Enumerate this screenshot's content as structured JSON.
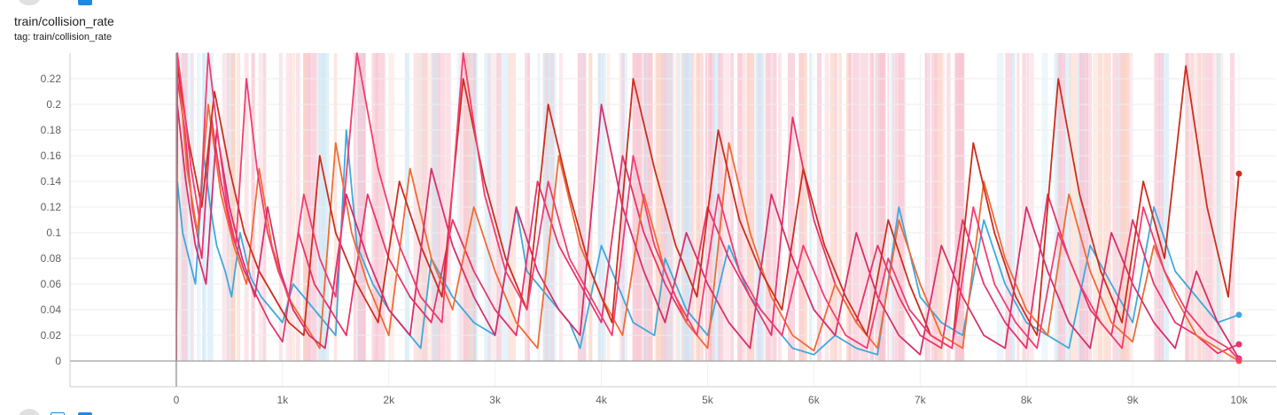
{
  "card": {
    "title": "train/collision_rate",
    "tag": "tag: train/collision_rate"
  },
  "chart_data": {
    "type": "line",
    "title": "train/collision_rate",
    "xlabel": "",
    "ylabel": "",
    "xlim": [
      -1000,
      10350
    ],
    "ylim": [
      -0.02,
      0.24
    ],
    "x_ticks": [
      0,
      1000,
      2000,
      3000,
      4000,
      5000,
      6000,
      7000,
      8000,
      9000,
      10000
    ],
    "x_tick_labels": [
      "0",
      "1k",
      "2k",
      "3k",
      "4k",
      "5k",
      "6k",
      "7k",
      "8k",
      "9k",
      "10k"
    ],
    "y_ticks": [
      0,
      0.02,
      0.04,
      0.06,
      0.08,
      0.1,
      0.12,
      0.14,
      0.16,
      0.18,
      0.2,
      0.22
    ],
    "y_tick_labels": [
      "0",
      "0.02",
      "0.04",
      "0.06",
      "0.08",
      "0.1",
      "0.12",
      "0.14",
      "0.16",
      "0.18",
      "0.2",
      "0.22"
    ],
    "grid": true,
    "legend": "none",
    "colors": [
      "#3fa9dd",
      "#e8346b",
      "#f26b35",
      "#cc2e1e",
      "#d6306c",
      "#f33d72"
    ],
    "series": [
      {
        "color": "#3fa9dd",
        "x": [
          0,
          10,
          60,
          120,
          180,
          260,
          320,
          380,
          460,
          520,
          600,
          700,
          800,
          900,
          1000,
          1100,
          1300,
          1500,
          1600,
          1700,
          1850,
          2000,
          2200,
          2300,
          2400,
          2600,
          2800,
          3000,
          3200,
          3300,
          3500,
          3700,
          3800,
          4000,
          4200,
          4300,
          4500,
          4600,
          4800,
          5000,
          5200,
          5400,
          5600,
          5800,
          6000,
          6200,
          6400,
          6600,
          6800,
          7000,
          7200,
          7400,
          7600,
          7800,
          8000,
          8200,
          8400,
          8600,
          8800,
          9000,
          9200,
          9400,
          9600,
          9800,
          10000
        ],
        "y": [
          0.0,
          0.14,
          0.1,
          0.08,
          0.06,
          0.16,
          0.12,
          0.09,
          0.07,
          0.05,
          0.1,
          0.065,
          0.05,
          0.04,
          0.03,
          0.06,
          0.04,
          0.02,
          0.18,
          0.09,
          0.06,
          0.04,
          0.02,
          0.01,
          0.08,
          0.05,
          0.03,
          0.02,
          0.12,
          0.07,
          0.05,
          0.03,
          0.01,
          0.09,
          0.05,
          0.03,
          0.02,
          0.08,
          0.04,
          0.02,
          0.09,
          0.05,
          0.03,
          0.01,
          0.005,
          0.02,
          0.01,
          0.005,
          0.12,
          0.05,
          0.03,
          0.02,
          0.11,
          0.06,
          0.03,
          0.02,
          0.01,
          0.09,
          0.06,
          0.03,
          0.12,
          0.07,
          0.05,
          0.03,
          0.036
        ]
      },
      {
        "color": "#e8346b",
        "x": [
          0,
          10,
          80,
          150,
          240,
          330,
          420,
          520,
          640,
          760,
          880,
          1000,
          1150,
          1300,
          1450,
          1600,
          1800,
          2000,
          2200,
          2400,
          2600,
          2800,
          3000,
          3200,
          3400,
          3600,
          3800,
          4000,
          4200,
          4400,
          4600,
          4800,
          5000,
          5200,
          5400,
          5600,
          5800,
          6000,
          6200,
          6400,
          6600,
          6800,
          7000,
          7200,
          7400,
          7600,
          7800,
          8000,
          8200,
          8400,
          8600,
          8800,
          9000,
          9200,
          9400,
          9600,
          9800,
          10000
        ],
        "y": [
          0.0,
          0.22,
          0.18,
          0.12,
          0.08,
          0.19,
          0.14,
          0.1,
          0.07,
          0.05,
          0.03,
          0.015,
          0.1,
          0.06,
          0.04,
          0.02,
          0.13,
          0.08,
          0.05,
          0.03,
          0.11,
          0.07,
          0.04,
          0.02,
          0.14,
          0.09,
          0.06,
          0.03,
          0.16,
          0.1,
          0.06,
          0.03,
          0.12,
          0.08,
          0.05,
          0.02,
          0.19,
          0.11,
          0.06,
          0.03,
          0.09,
          0.05,
          0.02,
          0.01,
          0.11,
          0.06,
          0.03,
          0.01,
          0.13,
          0.08,
          0.04,
          0.02,
          0.11,
          0.06,
          0.03,
          0.02,
          0.006,
          0.013
        ]
      },
      {
        "color": "#f26b35",
        "x": [
          0,
          10,
          100,
          200,
          300,
          420,
          540,
          660,
          780,
          900,
          1050,
          1200,
          1350,
          1500,
          1650,
          1800,
          2000,
          2200,
          2400,
          2600,
          2800,
          3000,
          3200,
          3400,
          3600,
          3800,
          4000,
          4200,
          4400,
          4600,
          4800,
          5000,
          5200,
          5400,
          5600,
          5800,
          6000,
          6200,
          6400,
          6600,
          6800,
          7000,
          7200,
          7400,
          7600,
          7800,
          8000,
          8200,
          8400,
          8600,
          8800,
          9000,
          9200,
          9400,
          9600,
          9800,
          10000
        ],
        "y": [
          0.0,
          0.24,
          0.15,
          0.1,
          0.2,
          0.13,
          0.09,
          0.06,
          0.15,
          0.09,
          0.05,
          0.03,
          0.01,
          0.17,
          0.1,
          0.06,
          0.02,
          0.15,
          0.08,
          0.04,
          0.12,
          0.07,
          0.03,
          0.01,
          0.16,
          0.09,
          0.05,
          0.02,
          0.13,
          0.07,
          0.03,
          0.01,
          0.17,
          0.1,
          0.05,
          0.02,
          0.008,
          0.06,
          0.03,
          0.01,
          0.11,
          0.06,
          0.02,
          0.01,
          0.14,
          0.08,
          0.04,
          0.02,
          0.13,
          0.07,
          0.03,
          0.015,
          0.09,
          0.05,
          0.02,
          0.01,
          0.0
        ]
      },
      {
        "color": "#cc2e1e",
        "x": [
          0,
          10,
          120,
          240,
          360,
          500,
          640,
          780,
          920,
          1060,
          1200,
          1350,
          1500,
          1700,
          1900,
          2100,
          2300,
          2500,
          2700,
          2900,
          3100,
          3300,
          3500,
          3700,
          3900,
          4100,
          4300,
          4500,
          4700,
          4900,
          5100,
          5300,
          5500,
          5700,
          5900,
          6100,
          6300,
          6500,
          6700,
          6900,
          7100,
          7300,
          7500,
          7700,
          7900,
          8100,
          8300,
          8500,
          8700,
          8900,
          9100,
          9300,
          9500,
          9700,
          9900,
          10000
        ],
        "y": [
          0.0,
          0.23,
          0.17,
          0.12,
          0.21,
          0.15,
          0.1,
          0.07,
          0.05,
          0.03,
          0.02,
          0.16,
          0.1,
          0.06,
          0.03,
          0.14,
          0.09,
          0.05,
          0.22,
          0.14,
          0.08,
          0.04,
          0.2,
          0.13,
          0.07,
          0.03,
          0.22,
          0.15,
          0.09,
          0.05,
          0.18,
          0.11,
          0.07,
          0.04,
          0.15,
          0.09,
          0.05,
          0.02,
          0.11,
          0.06,
          0.02,
          0.01,
          0.17,
          0.1,
          0.05,
          0.02,
          0.22,
          0.13,
          0.07,
          0.03,
          0.14,
          0.08,
          0.23,
          0.12,
          0.05,
          0.146
        ]
      },
      {
        "color": "#d6306c",
        "x": [
          0,
          10,
          90,
          180,
          280,
          380,
          500,
          620,
          740,
          860,
          980,
          1100,
          1250,
          1400,
          1600,
          1800,
          2000,
          2200,
          2400,
          2600,
          2800,
          3000,
          3200,
          3400,
          3600,
          3800,
          4000,
          4200,
          4400,
          4600,
          4800,
          5000,
          5200,
          5400,
          5600,
          5800,
          6000,
          6200,
          6400,
          6600,
          6800,
          7000,
          7200,
          7400,
          7600,
          7800,
          8000,
          8200,
          8400,
          8600,
          8800,
          9000,
          9200,
          9400,
          9600,
          9800,
          10000
        ],
        "y": [
          0.0,
          0.2,
          0.14,
          0.09,
          0.06,
          0.18,
          0.12,
          0.08,
          0.05,
          0.12,
          0.07,
          0.04,
          0.02,
          0.01,
          0.13,
          0.08,
          0.04,
          0.02,
          0.15,
          0.09,
          0.05,
          0.02,
          0.12,
          0.07,
          0.04,
          0.02,
          0.2,
          0.12,
          0.07,
          0.03,
          0.1,
          0.06,
          0.03,
          0.01,
          0.13,
          0.08,
          0.04,
          0.02,
          0.1,
          0.05,
          0.02,
          0.005,
          0.09,
          0.05,
          0.02,
          0.01,
          0.12,
          0.07,
          0.03,
          0.01,
          0.1,
          0.06,
          0.03,
          0.01,
          0.07,
          0.03,
          0.002
        ]
      },
      {
        "color": "#f33d72",
        "x": [
          0,
          10,
          70,
          140,
          220,
          300,
          400,
          480,
          560,
          660,
          760,
          860,
          960,
          1060,
          1200,
          1350,
          1500,
          1700,
          1900,
          2100,
          2300,
          2500,
          2700,
          2900,
          3100,
          3300,
          3500,
          3700,
          3900,
          4100,
          4300,
          4500,
          4700,
          4900,
          5100,
          5300,
          5500,
          5700,
          5900,
          6100,
          6300,
          6500,
          6700,
          6900,
          7100,
          7300,
          7500,
          7700,
          7900,
          8100,
          8300,
          8500,
          8700,
          8900,
          9100,
          9300,
          9500,
          9700,
          9900,
          10000
        ],
        "y": [
          0.0,
          0.24,
          0.2,
          0.15,
          0.11,
          0.24,
          0.17,
          0.12,
          0.09,
          0.22,
          0.15,
          0.1,
          0.07,
          0.05,
          0.13,
          0.08,
          0.05,
          0.24,
          0.15,
          0.09,
          0.05,
          0.03,
          0.24,
          0.13,
          0.07,
          0.04,
          0.14,
          0.08,
          0.05,
          0.02,
          0.16,
          0.09,
          0.05,
          0.02,
          0.13,
          0.07,
          0.04,
          0.02,
          0.09,
          0.05,
          0.02,
          0.01,
          0.08,
          0.04,
          0.02,
          0.01,
          0.12,
          0.06,
          0.03,
          0.01,
          0.1,
          0.06,
          0.03,
          0.01,
          0.12,
          0.07,
          0.04,
          0.02,
          0.01,
          0.001
        ]
      }
    ]
  }
}
